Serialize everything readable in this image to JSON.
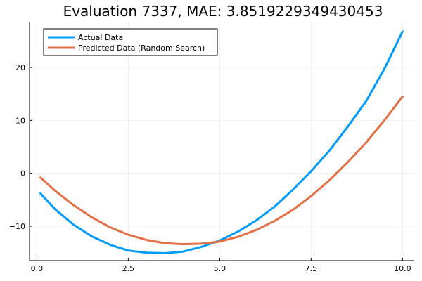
{
  "chart_data": {
    "type": "line",
    "title": "Evaluation 7337, MAE: 3.8519229349430453",
    "xlabel": "",
    "ylabel": "",
    "xlim": [
      -0.2,
      10.3
    ],
    "ylim": [
      -16.5,
      28.5
    ],
    "xticks": [
      0.0,
      2.5,
      5.0,
      7.5,
      10.0
    ],
    "xtick_labels": [
      "0.0",
      "2.5",
      "5.0",
      "7.5",
      "10.0"
    ],
    "yticks": [
      -10,
      0,
      10,
      20
    ],
    "ytick_labels": [
      "−10",
      "0",
      "10",
      "20"
    ],
    "grid": true,
    "legend_position": "top-left",
    "series": [
      {
        "name": "Actual Data",
        "color": "#009AFA",
        "x": [
          0.1,
          0.5,
          1.0,
          1.5,
          2.0,
          2.5,
          3.0,
          3.5,
          4.0,
          4.5,
          5.0,
          5.5,
          6.0,
          6.5,
          7.0,
          7.5,
          8.0,
          8.5,
          9.0,
          9.5,
          10.0
        ],
        "y": [
          -3.8,
          -6.8,
          -9.7,
          -11.9,
          -13.5,
          -14.6,
          -15.0,
          -15.1,
          -14.8,
          -13.9,
          -12.7,
          -11.0,
          -8.9,
          -6.3,
          -3.1,
          0.4,
          4.3,
          8.8,
          13.6,
          19.7,
          26.8
        ]
      },
      {
        "name": "Predicted Data (Random Search)",
        "color": "#E26F46",
        "x": [
          0.1,
          0.5,
          1.0,
          1.5,
          2.0,
          2.5,
          3.0,
          3.5,
          4.0,
          4.5,
          5.0,
          5.5,
          6.0,
          6.5,
          7.0,
          7.5,
          8.0,
          8.5,
          9.0,
          9.5,
          10.0
        ],
        "y": [
          -0.8,
          -3.3,
          -6.0,
          -8.3,
          -10.2,
          -11.6,
          -12.6,
          -13.2,
          -13.4,
          -13.3,
          -12.9,
          -12.0,
          -10.7,
          -9.0,
          -6.9,
          -4.3,
          -1.3,
          2.1,
          5.8,
          10.0,
          14.5
        ]
      }
    ]
  }
}
